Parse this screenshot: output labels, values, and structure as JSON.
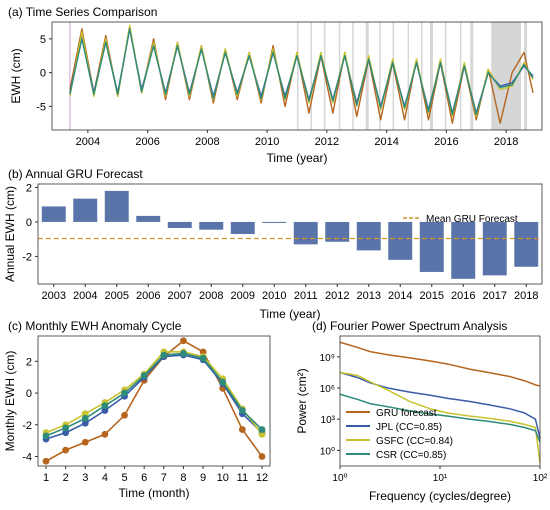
{
  "chart_data": [
    {
      "type": "line",
      "title": "(a) Time Series Comparison",
      "xlabel": "Time (year)",
      "ylabel": "EWH (cm)",
      "xlim": [
        2002.8,
        2019.2
      ],
      "ylim": [
        -8.5,
        7.5
      ],
      "yticks": [
        5,
        0,
        -5
      ],
      "xticks": [
        2004,
        2006,
        2008,
        2010,
        2012,
        2014,
        2016,
        2018
      ],
      "vline": 2003.4,
      "gaps": [
        [
          2011.0,
          2011.05
        ],
        [
          2011.45,
          2011.5
        ],
        [
          2011.9,
          2011.95
        ],
        [
          2012.4,
          2012.45
        ],
        [
          2012.85,
          2012.9
        ],
        [
          2013.3,
          2013.4
        ],
        [
          2013.75,
          2013.8
        ],
        [
          2014.2,
          2014.25
        ],
        [
          2014.7,
          2014.75
        ],
        [
          2015.15,
          2015.2
        ],
        [
          2015.45,
          2015.55
        ],
        [
          2015.95,
          2016.0
        ],
        [
          2016.45,
          2016.5
        ],
        [
          2016.8,
          2016.9
        ],
        [
          2017.5,
          2018.5
        ],
        [
          2018.6,
          2018.7
        ]
      ],
      "series": [
        {
          "name": "GRU forecast",
          "color": "#b5651d",
          "x": [
            2003.4,
            2003.8,
            2004.2,
            2004.6,
            2005.0,
            2005.4,
            2005.8,
            2006.2,
            2006.6,
            2007.0,
            2007.4,
            2007.8,
            2008.2,
            2008.6,
            2009.0,
            2009.4,
            2009.8,
            2010.2,
            2010.6,
            2011.0,
            2011.4,
            2011.8,
            2012.2,
            2012.6,
            2013.0,
            2013.4,
            2013.8,
            2014.2,
            2014.6,
            2015.0,
            2015.4,
            2015.8,
            2016.2,
            2016.6,
            2017.0,
            2017.4,
            2017.8,
            2018.2,
            2018.6,
            2018.9
          ],
          "y": [
            -2.5,
            6.5,
            -3.0,
            5.5,
            -3.5,
            6.8,
            -3.0,
            5.0,
            -4.0,
            4.5,
            -4.0,
            4.0,
            -4.5,
            3.5,
            -4.0,
            3.0,
            -4.5,
            4.0,
            -5.0,
            3.0,
            -6.0,
            2.5,
            -6.0,
            3.0,
            -6.5,
            2.0,
            -7.0,
            1.5,
            -7.0,
            2.0,
            -7.0,
            1.5,
            -7.5,
            1.0,
            -7.0,
            0.5,
            -7.5,
            0.0,
            3.0,
            -3.0
          ]
        },
        {
          "name": "JPL (CC=0.85)",
          "color": "#3a5ca8",
          "x": [
            2003.4,
            2003.8,
            2004.2,
            2004.6,
            2005.0,
            2005.4,
            2005.8,
            2006.2,
            2006.6,
            2007.0,
            2007.4,
            2007.8,
            2008.2,
            2008.6,
            2009.0,
            2009.4,
            2009.8,
            2010.2,
            2010.6,
            2011.0,
            2011.4,
            2011.8,
            2012.2,
            2012.6,
            2013.0,
            2013.4,
            2013.8,
            2014.2,
            2014.6,
            2015.0,
            2015.4,
            2015.8,
            2016.2,
            2016.6,
            2017.0,
            2017.4,
            2017.8,
            2018.2,
            2018.6,
            2018.9
          ],
          "y": [
            -3.0,
            5.5,
            -3.0,
            4.5,
            -3.0,
            6.5,
            -2.5,
            4.0,
            -3.0,
            4.0,
            -3.0,
            3.5,
            -3.5,
            3.0,
            -3.0,
            2.5,
            -3.5,
            3.0,
            -3.5,
            2.5,
            -4.0,
            2.5,
            -4.0,
            2.5,
            -4.5,
            2.0,
            -5.0,
            1.5,
            -5.0,
            1.5,
            -5.5,
            1.5,
            -6.0,
            1.0,
            -6.0,
            0.0,
            -2.0,
            -1.5,
            1.0,
            -0.5
          ]
        },
        {
          "name": "GSFC (CC=0.84)",
          "color": "#c8c32e",
          "x": [
            2003.4,
            2003.8,
            2004.2,
            2004.6,
            2005.0,
            2005.4,
            2005.8,
            2006.2,
            2006.6,
            2007.0,
            2007.4,
            2007.8,
            2008.2,
            2008.6,
            2009.0,
            2009.4,
            2009.8,
            2010.2,
            2010.6,
            2011.0,
            2011.4,
            2011.8,
            2012.2,
            2012.6,
            2013.0,
            2013.4,
            2013.8,
            2014.2,
            2014.6,
            2015.0,
            2015.4,
            2015.8,
            2016.2,
            2016.6,
            2017.0,
            2017.4,
            2017.8,
            2018.2,
            2018.6,
            2018.9
          ],
          "y": [
            -3.5,
            6.0,
            -3.5,
            5.0,
            -3.5,
            7.0,
            -3.0,
            4.5,
            -3.5,
            4.5,
            -3.5,
            4.0,
            -4.0,
            3.5,
            -3.5,
            3.0,
            -4.0,
            3.5,
            -4.0,
            3.0,
            -4.5,
            3.0,
            -4.5,
            3.0,
            -5.0,
            2.5,
            -5.5,
            2.0,
            -5.5,
            2.0,
            -6.0,
            2.0,
            -6.5,
            1.5,
            -6.5,
            0.5,
            -2.5,
            -2.0,
            1.5,
            -1.0
          ]
        },
        {
          "name": "CSR (CC=0.85)",
          "color": "#2e8b7a",
          "x": [
            2003.4,
            2003.8,
            2004.2,
            2004.6,
            2005.0,
            2005.4,
            2005.8,
            2006.2,
            2006.6,
            2007.0,
            2007.4,
            2007.8,
            2008.2,
            2008.6,
            2009.0,
            2009.4,
            2009.8,
            2010.2,
            2010.6,
            2011.0,
            2011.4,
            2011.8,
            2012.2,
            2012.6,
            2013.0,
            2013.4,
            2013.8,
            2014.2,
            2014.6,
            2015.0,
            2015.4,
            2015.8,
            2016.2,
            2016.6,
            2017.0,
            2017.4,
            2017.8,
            2018.2,
            2018.6,
            2018.9
          ],
          "y": [
            -3.2,
            5.0,
            -3.2,
            4.5,
            -3.2,
            6.5,
            -2.8,
            4.0,
            -3.2,
            4.0,
            -3.2,
            3.5,
            -3.8,
            3.0,
            -3.2,
            2.5,
            -3.8,
            3.0,
            -3.8,
            2.5,
            -4.2,
            2.5,
            -4.2,
            2.5,
            -4.8,
            2.0,
            -5.2,
            1.5,
            -5.2,
            1.5,
            -5.8,
            1.5,
            -6.2,
            1.0,
            -6.2,
            0.0,
            -2.2,
            -1.8,
            1.2,
            -0.8
          ]
        }
      ]
    },
    {
      "type": "bar",
      "title": "(b) Annual GRU Forecast",
      "xlabel": "Time (year)",
      "ylabel": "Annual EWH (cm)",
      "categories": [
        "2003",
        "2004",
        "2005",
        "2006",
        "2007",
        "2008",
        "2009",
        "2010",
        "2011",
        "2012",
        "2013",
        "2014",
        "2015",
        "2016",
        "2017",
        "2018"
      ],
      "values": [
        0.9,
        1.35,
        1.8,
        0.35,
        -0.35,
        -0.45,
        -0.7,
        -0.05,
        -1.3,
        -1.15,
        -1.65,
        -2.2,
        -2.9,
        -3.3,
        -3.1,
        -2.6
      ],
      "ylim": [
        -3.6,
        2.2
      ],
      "yticks": [
        2,
        0,
        -2
      ],
      "bar_color": "#5874a9",
      "mean_label": "Mean GRU Forecast",
      "mean_value": -0.96,
      "mean_color": "#d4942a"
    },
    {
      "type": "line",
      "title": "(c) Monthly EWH Anomaly Cycle",
      "xlabel": "Time (month)",
      "ylabel": "Monthly EWH (cm)",
      "categories": [
        "1",
        "2",
        "3",
        "4",
        "5",
        "6",
        "7",
        "8",
        "9",
        "10",
        "11",
        "12"
      ],
      "ylim": [
        -4.6,
        3.6
      ],
      "yticks": [
        2,
        0,
        -2,
        -4
      ],
      "series": [
        {
          "color": "#b5651d",
          "values": [
            -4.3,
            -3.6,
            -3.1,
            -2.6,
            -1.4,
            0.8,
            2.3,
            3.3,
            2.6,
            0.3,
            -2.3,
            -4.0
          ]
        },
        {
          "color": "#3a5ca8",
          "values": [
            -2.9,
            -2.5,
            -1.9,
            -1.1,
            -0.2,
            1.0,
            2.3,
            2.4,
            2.1,
            0.6,
            -1.3,
            -2.5
          ]
        },
        {
          "color": "#c8c32e",
          "values": [
            -2.5,
            -2.0,
            -1.3,
            -0.6,
            0.2,
            1.2,
            2.6,
            2.6,
            2.3,
            0.9,
            -1.0,
            -2.6
          ]
        },
        {
          "color": "#2e8b7a",
          "values": [
            -2.7,
            -2.2,
            -1.6,
            -0.8,
            0.0,
            1.1,
            2.4,
            2.5,
            2.2,
            0.7,
            -1.1,
            -2.3
          ]
        }
      ]
    },
    {
      "type": "line",
      "title": "(d) Fourier Power Spectrum Analysis",
      "xlabel": "Frequency (cycles/degree)",
      "ylabel": "Power (cm²)",
      "xscale": "log",
      "yscale": "log",
      "xlim": [
        1,
        100
      ],
      "ylim_exp": [
        -1.5,
        11
      ],
      "xtick_labels": [
        "10⁰",
        "10¹",
        "10²"
      ],
      "ytick_labels": [
        "10⁹",
        "10⁶",
        "10³",
        "10⁰"
      ],
      "legend_position": "lower-left",
      "series": [
        {
          "name": "GRU forecast",
          "color": "#b5651d",
          "x": [
            1,
            1.5,
            2,
            3,
            5,
            8,
            12,
            20,
            30,
            50,
            70,
            90,
            100
          ],
          "y_exp": [
            10.4,
            9.9,
            9.5,
            9.2,
            8.9,
            8.6,
            8.3,
            7.8,
            7.5,
            7.1,
            6.7,
            6.3,
            6.2
          ]
        },
        {
          "name": "JPL (CC=0.85)",
          "color": "#3a5ca8",
          "x": [
            1,
            1.5,
            2,
            3,
            5,
            8,
            12,
            20,
            30,
            50,
            70,
            90,
            100
          ],
          "y_exp": [
            7.5,
            7.0,
            6.5,
            6.0,
            5.6,
            5.3,
            5.0,
            4.7,
            4.4,
            4.0,
            3.6,
            3.0,
            1.2
          ]
        },
        {
          "name": "GSFC (CC=0.84)",
          "color": "#c8c32e",
          "x": [
            1,
            1.5,
            2,
            3,
            5,
            8,
            12,
            20,
            30,
            50,
            70,
            90,
            100
          ],
          "y_exp": [
            7.5,
            7.2,
            6.6,
            5.8,
            4.7,
            4.0,
            3.6,
            3.3,
            3.1,
            2.8,
            2.5,
            2.2,
            -1.2
          ]
        },
        {
          "name": "CSR (CC=0.85)",
          "color": "#2e8b7a",
          "x": [
            1,
            1.5,
            2,
            3,
            5,
            8,
            12,
            20,
            30,
            50,
            70,
            90,
            100
          ],
          "y_exp": [
            5.4,
            4.9,
            4.5,
            4.2,
            3.8,
            3.5,
            3.3,
            3.0,
            2.8,
            2.5,
            2.2,
            1.9,
            0.8
          ]
        }
      ]
    }
  ]
}
